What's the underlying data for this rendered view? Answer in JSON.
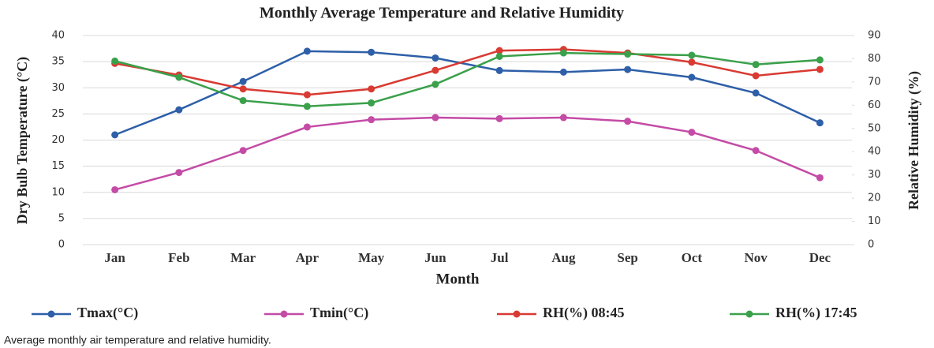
{
  "chart_data": {
    "type": "line",
    "title": "Monthly Average Temperature and Relative Humidity",
    "xlabel": "Month",
    "ylabel": "Dry Bulb Temperature (°C)",
    "y2label": "Relative Humidity (%)",
    "categories": [
      "Jan",
      "Feb",
      "Mar",
      "Apr",
      "May",
      "Jun",
      "Jul",
      "Aug",
      "Sep",
      "Oct",
      "Nov",
      "Dec"
    ],
    "series": [
      {
        "name": "Tmax(°C)",
        "color": "#2e5fa8",
        "values": [
          21,
          25.8,
          31.2,
          37,
          36.8,
          35.7,
          33.3,
          33,
          33.5,
          32,
          29,
          23.3
        ]
      },
      {
        "name": "Tmin(°C)",
        "color": "#c44ba6",
        "values": [
          10.5,
          13.8,
          18,
          22.5,
          23.9,
          24.3,
          24.1,
          24.3,
          23.6,
          21.5,
          18,
          12.8
        ]
      },
      {
        "name": "RH(%) 08:45",
        "color": "#d93a32",
        "axis": "y2",
        "values": [
          78,
          73,
          67,
          64.5,
          67,
          75,
          83.5,
          84,
          82.5,
          78.5,
          72.7,
          75.4
        ]
      },
      {
        "name": "RH(%) 17:45",
        "color": "#3aa04a",
        "axis": "y2",
        "values": [
          79,
          72,
          62,
          59.5,
          61,
          69,
          81,
          82.5,
          82,
          81.5,
          77.5,
          79.5
        ]
      }
    ],
    "ylim": [
      0,
      40
    ],
    "yticks": [
      0,
      5,
      10,
      15,
      20,
      25,
      30,
      35,
      40
    ],
    "y2lim": [
      0,
      90
    ],
    "y2ticks": [
      0,
      10,
      20,
      30,
      40,
      50,
      60,
      70,
      80,
      90
    ],
    "grid": true,
    "legend": "bottom"
  },
  "caption": "Average monthly air temperature and relative humidity."
}
